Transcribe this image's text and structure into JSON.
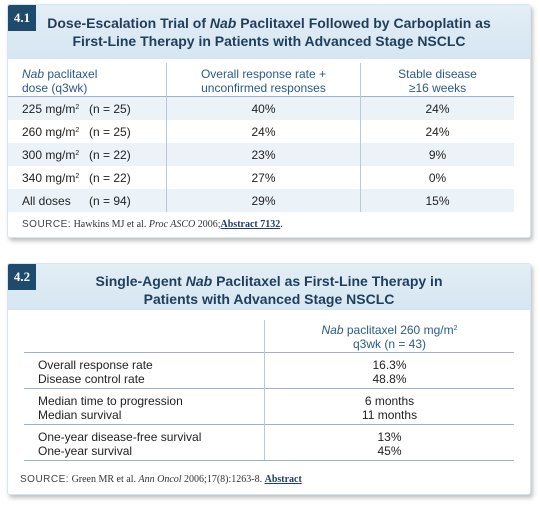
{
  "table1": {
    "number": "4.1",
    "title_pre": "Dose-Escalation Trial of ",
    "title_italic": "Nab",
    "title_line1_rest": " Paclitaxel Followed by Carboplatin as",
    "title_line2": "First-Line Therapy in Patients with Advanced Stage NSCLC",
    "col1_italic": "Nab",
    "col1_line1_rest": " paclitaxel",
    "col1_line2": "dose (q3wk)",
    "col2_line1": "Overall response rate +",
    "col2_line2": "unconfirmed responses",
    "col3_line1": "Stable disease",
    "col3_line2": "≥16 weeks",
    "rows": [
      {
        "dose": "225 mg/m",
        "sup": "2",
        "n": "(n = 25)",
        "orr": "40%",
        "sd": "24%"
      },
      {
        "dose": "260 mg/m",
        "sup": "2",
        "n": "(n = 25)",
        "orr": "24%",
        "sd": "24%"
      },
      {
        "dose": "300 mg/m",
        "sup": "2",
        "n": "(n = 22)",
        "orr": "23%",
        "sd": "9%"
      },
      {
        "dose": "340 mg/m",
        "sup": "2",
        "n": "(n = 22)",
        "orr": "27%",
        "sd": "0%"
      },
      {
        "dose": "All doses",
        "sup": "",
        "n": "(n = 94)",
        "orr": "29%",
        "sd": "15%"
      }
    ],
    "source_label": "SOURCE:",
    "source_text": " Hawkins MJ et al. ",
    "source_journal": "Proc ASCO",
    "source_year": " 2006;",
    "source_link": "Abstract 7132",
    "source_end": "."
  },
  "table2": {
    "number": "4.2",
    "title_pre": "Single-Agent ",
    "title_italic": "Nab",
    "title_line1_rest": " Paclitaxel as First-Line Therapy in",
    "title_line2": "Patients with Advanced Stage NSCLC",
    "col_italic": "Nab",
    "col_line1_rest": " paclitaxel 260 mg/m",
    "col_sup": "2",
    "col_line2": "q3wk (n = 43)",
    "rows": [
      {
        "label": "Overall response rate",
        "value": "16.3%"
      },
      {
        "label": "Disease control rate",
        "value": "48.8%"
      },
      {
        "label": "Median time to progression",
        "value": "6 months"
      },
      {
        "label": "Median survival",
        "value": "11 months"
      },
      {
        "label": "One-year disease-free survival",
        "value": "13%"
      },
      {
        "label": "One-year survival",
        "value": "45%"
      }
    ],
    "source_label": "SOURCE:",
    "source_text": " Green MR et al. ",
    "source_journal": "Ann Oncol",
    "source_year": " 2006;17(8):1263-8. ",
    "source_link": "Abstract"
  }
}
